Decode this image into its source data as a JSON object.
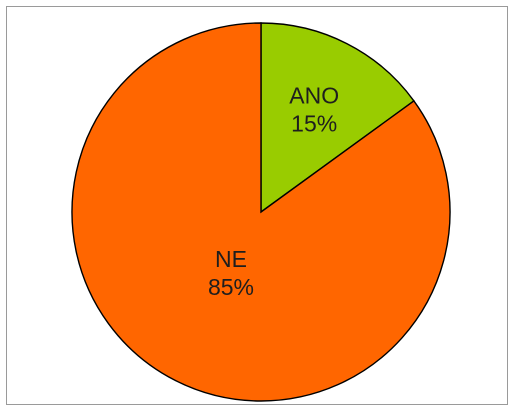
{
  "chart_data": {
    "type": "pie",
    "categories": [
      "ANO",
      "NE"
    ],
    "values": [
      15,
      85
    ],
    "value_labels": [
      "15%",
      "85%"
    ],
    "colors": [
      "#99cc00",
      "#ff6600"
    ],
    "title": "",
    "legend": "none"
  }
}
